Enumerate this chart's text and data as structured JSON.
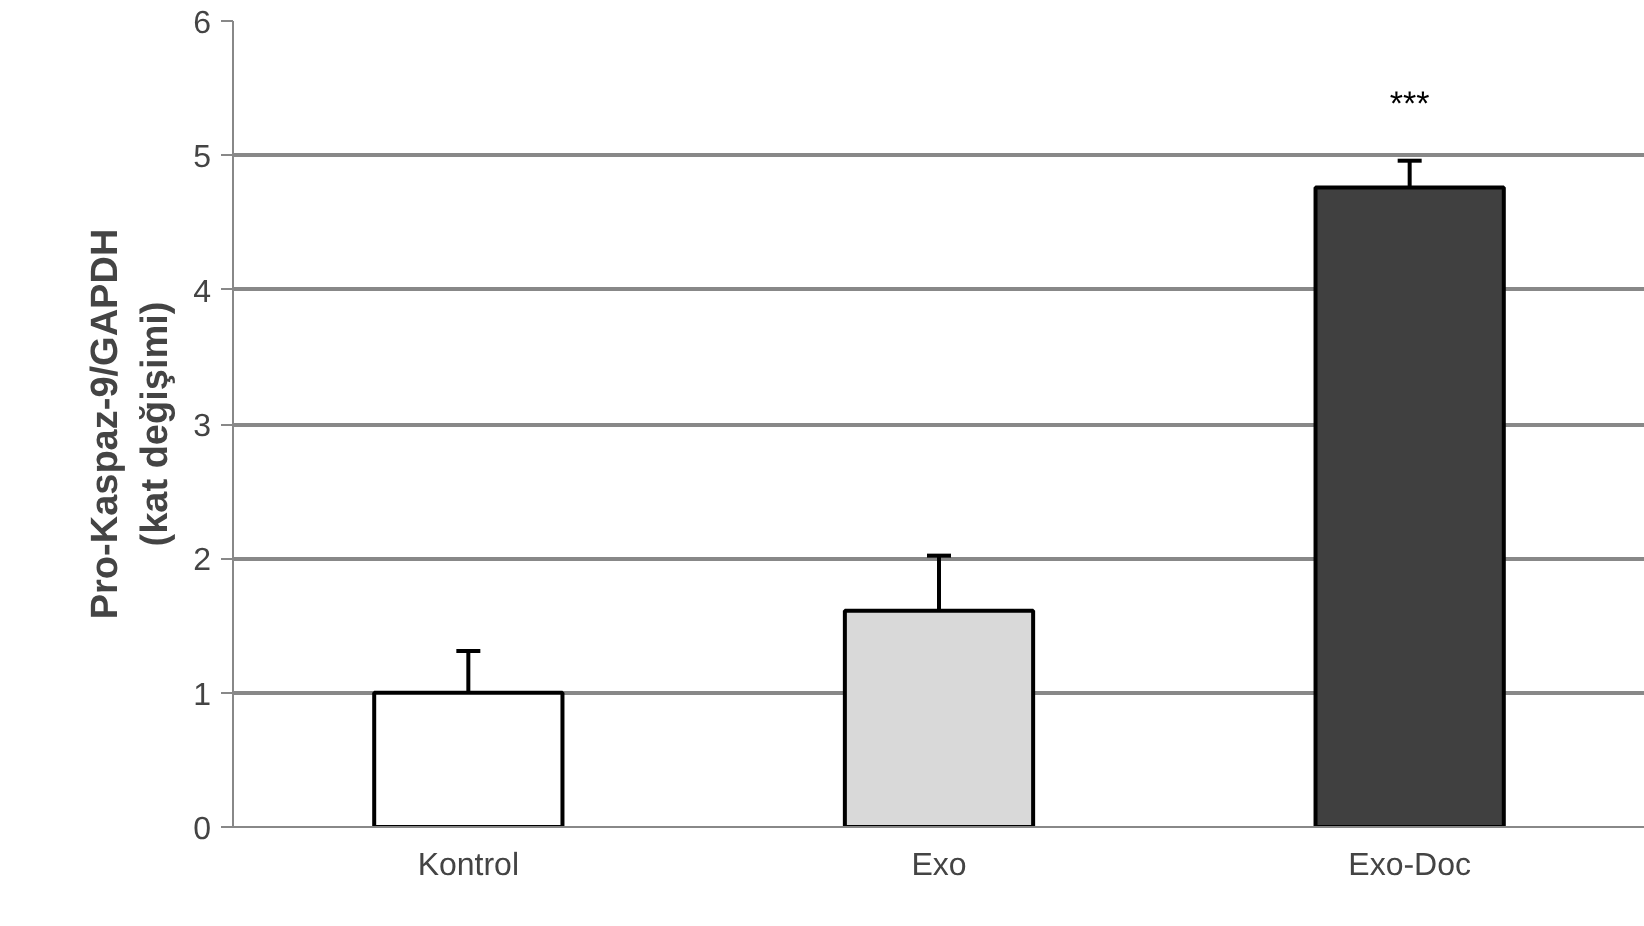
{
  "chart_data": {
    "type": "bar",
    "ylabel": "Pro-Kaspaz-9/GAPDH\n(kat değişimi)",
    "categories": [
      "Kontrol",
      "Exo",
      "Exo-Doc"
    ],
    "values": [
      1.0,
      1.61,
      4.76
    ],
    "colors": [
      "#ffffff",
      "#d9d9d9",
      "#404040"
    ],
    "errors": [
      [
        1.0,
        1.31
      ],
      [
        1.61,
        2.02
      ],
      [
        4.76,
        4.96
      ]
    ],
    "ylim": [
      0,
      6
    ],
    "yticks": [
      0,
      1,
      2,
      3,
      4,
      5,
      6
    ],
    "grid": "y",
    "annotations": [
      "***"
    ]
  }
}
